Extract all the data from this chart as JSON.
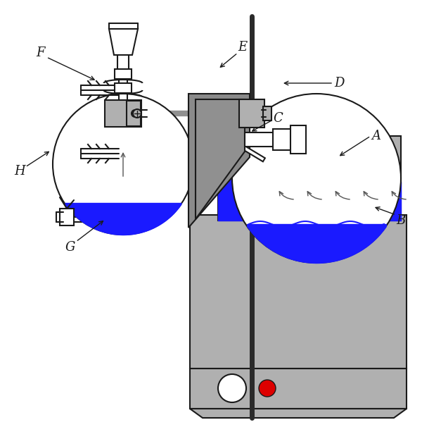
{
  "bg_color": "#ffffff",
  "line_color": "#1a1a1a",
  "gray_fill": "#b0b0b0",
  "dark_gray": "#808080",
  "blue_color": "#1a1aff",
  "red_color": "#dd0000",
  "white": "#ffffff",
  "figsize": [
    6.0,
    6.23
  ],
  "dpi": 100,
  "xlim": [
    0,
    600
  ],
  "ylim": [
    0,
    623
  ]
}
